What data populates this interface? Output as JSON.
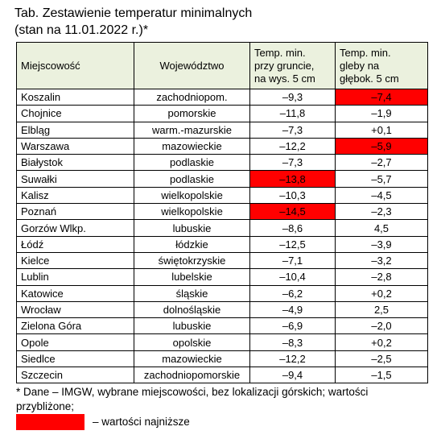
{
  "title": [
    "Tab.  Zestawienie temperatur minimalnych",
    "(stan na 11.01.2022 r.)*"
  ],
  "table": {
    "header": [
      "Miejscowość",
      "Województwo",
      "Temp. min.\nprzy gruncie,\nna wys. 5 cm",
      "Temp. min.\ngleby na\ngłębok. 5 cm"
    ],
    "rows": [
      [
        "Koszalin",
        "zachodniopom.",
        "–9,3",
        "–7,4"
      ],
      [
        "Chojnice",
        "pomorskie",
        "–11,8",
        "–1,9"
      ],
      [
        "Elbląg",
        "warm.-mazurskie",
        "–7,3",
        "+0,1"
      ],
      [
        "Warszawa",
        "mazowieckie",
        "–12,2",
        "–5,9"
      ],
      [
        "Białystok",
        "podlaskie",
        "–7,3",
        "–2,7"
      ],
      [
        "Suwałki",
        "podlaskie",
        "–13,8",
        "–5,7"
      ],
      [
        "Kalisz",
        "wielkopolskie",
        "–10,3",
        "–4,5"
      ],
      [
        "Poznań",
        "wielkopolskie",
        "–14,5",
        "–2,3"
      ],
      [
        "Gorzów Wlkp.",
        "lubuskie",
        "–8,6",
        "4,5"
      ],
      [
        "Łódź",
        "łódzkie",
        "–12,5",
        "–3,9"
      ],
      [
        "Kielce",
        "świętokrzyskie",
        "–7,1",
        "–3,2"
      ],
      [
        "Lublin",
        "lubelskie",
        "–10,4",
        "–2,8"
      ],
      [
        "Katowice",
        "śląskie",
        "–6,2",
        "+0,2"
      ],
      [
        "Wrocław",
        "dolnośląskie",
        "–4,9",
        "2,5"
      ],
      [
        "Zielona Góra",
        "lubuskie",
        "–6,9",
        "–2,0"
      ],
      [
        "Opole",
        "opolskie",
        "–8,3",
        "+0,2"
      ],
      [
        "Siedlce",
        "mazowieckie",
        "–12,2",
        "–2,5"
      ],
      [
        "Szczecin",
        "zachodniopomorskie",
        "–9,4",
        "–1,5"
      ]
    ],
    "highlight_color": "#ff0000",
    "highlighted_cells": [
      [
        0,
        3
      ],
      [
        3,
        3
      ],
      [
        5,
        2
      ],
      [
        7,
        2
      ]
    ],
    "header_color": "#ebf1de"
  },
  "footnote": "* Dane – IMGW, wybrane miejscowości, bez lokalizacji górskich; wartości przybliżone;",
  "legend": "– wartości najniższe"
}
